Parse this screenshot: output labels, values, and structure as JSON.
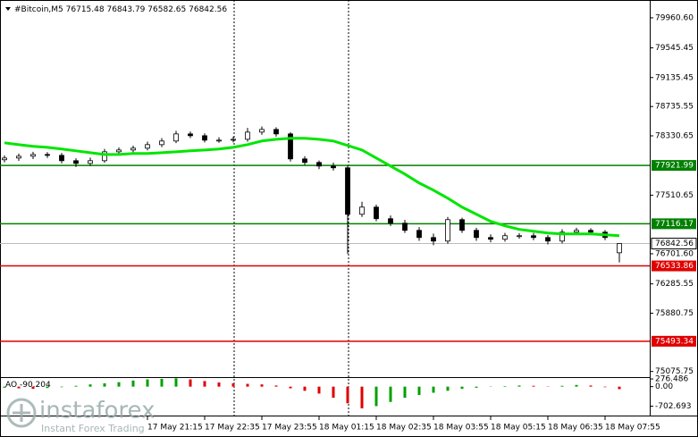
{
  "chart_data": {
    "type": "candlestick",
    "symbol": "#Bitcoin,M5",
    "x": [
      null,
      null,
      null,
      null,
      null,
      null,
      null,
      null,
      null,
      null,
      "17 May 21:15",
      null,
      null,
      null,
      "17 May 22:35",
      null,
      null,
      null,
      "17 May 23:55",
      null,
      null,
      null,
      "18 May 01:15",
      null,
      null,
      null,
      "18 May 02:35",
      null,
      null,
      null,
      "18 May 03:55",
      null,
      null,
      null,
      "18 May 05:15",
      null,
      null,
      null,
      "18 May 06:35",
      null,
      null,
      null,
      "18 May 07:55",
      null
    ],
    "open": [
      78000,
      78024,
      78049,
      78073,
      78061,
      77987,
      77950,
      77987,
      78110,
      78135,
      78160,
      78209,
      78259,
      78357,
      78332,
      78271,
      78271,
      78283,
      78382,
      78419,
      78357,
      78012,
      77963,
      77913,
      77889,
      77247,
      77346,
      77186,
      77124,
      77025,
      76926,
      76877,
      77173,
      77025,
      76926,
      76902,
      76951,
      76951,
      76926,
      76877,
      77000,
      77025,
      77000,
      76715.48
    ],
    "high": [
      78060,
      78085,
      78110,
      78105,
      78095,
      78020,
      78030,
      78150,
      78170,
      78195,
      78250,
      78300,
      78400,
      78390,
      78365,
      78310,
      78320,
      78440,
      78460,
      78450,
      78380,
      78050,
      77990,
      77960,
      77920,
      77420,
      77380,
      77230,
      77170,
      77070,
      76980,
      77210,
      77200,
      77060,
      76970,
      76990,
      76985,
      76990,
      76960,
      77040,
      77060,
      77055,
      77030,
      76843.79
    ],
    "low": [
      77965,
      77985,
      78010,
      78025,
      77950,
      77900,
      77915,
      77960,
      78080,
      78100,
      78130,
      78175,
      78230,
      78300,
      78240,
      78235,
      78240,
      78250,
      78345,
      78320,
      77975,
      77930,
      77870,
      77850,
      76700,
      77210,
      77150,
      77085,
      76990,
      76880,
      76820,
      76840,
      76990,
      76880,
      76860,
      76870,
      76910,
      76890,
      76830,
      76845,
      76960,
      76965,
      76890,
      76582.65
    ],
    "close": [
      78024,
      78049,
      78073,
      78061,
      77987,
      77950,
      77987,
      78110,
      78135,
      78160,
      78209,
      78259,
      78357,
      78332,
      78271,
      78271,
      78283,
      78382,
      78419,
      78357,
      78012,
      77963,
      77913,
      77889,
      77247,
      77346,
      77186,
      77124,
      77025,
      76926,
      76877,
      77173,
      77025,
      76926,
      76902,
      76951,
      76951,
      76926,
      76877,
      77000,
      77025,
      77000,
      76926,
      76842.56
    ],
    "ma": {
      "color": "#00e600",
      "values": [
        78234,
        78209,
        78185,
        78172,
        78148,
        78123,
        78098,
        78073,
        78073,
        78086,
        78086,
        78098,
        78110,
        78123,
        78135,
        78148,
        78172,
        78209,
        78259,
        78283,
        78296,
        78296,
        78283,
        78259,
        78197,
        78135,
        78024,
        77913,
        77802,
        77679,
        77580,
        77469,
        77346,
        77247,
        77149,
        77087,
        77038,
        77013,
        76988,
        76976,
        76976,
        76976,
        76964,
        76951
      ]
    },
    "ylim": [
      75010,
      80145
    ],
    "yticks": [
      {
        "value": 79960.6,
        "label": "79960.60"
      },
      79545.45,
      79135.45,
      78735.55,
      78330.65,
      77510.65,
      {
        "value": 76701.6,
        "label": "76701.60"
      },
      76285.55,
      75880.75,
      75075.75
    ],
    "levels": [
      {
        "value": 77921.99,
        "color": "#008000"
      },
      {
        "value": 77116.17,
        "color": "#008000"
      },
      {
        "value": 76533.86,
        "color": "#e00000"
      },
      {
        "value": 75493.34,
        "color": "#e00000"
      }
    ],
    "ao": {
      "name": "AO",
      "values": [
        -40,
        -60,
        -80,
        -50,
        -20,
        30,
        80,
        120,
        160,
        220,
        260,
        280,
        300,
        260,
        200,
        150,
        120,
        100,
        80,
        40,
        -60,
        -150,
        -250,
        -400,
        -600,
        -780,
        -700,
        -550,
        -400,
        -300,
        -220,
        -150,
        -80,
        -40,
        -10,
        20,
        40,
        30,
        10,
        30,
        60,
        40,
        -20,
        -90.204
      ],
      "ylim": [
        -1040,
        310
      ],
      "yticks": [
        276.486,
        {
          "value": 0,
          "label": "0.00"
        },
        -702.693
      ],
      "up_color": "#00a000",
      "down_color": "#e00000"
    },
    "watermark": {
      "brand": "instaforex",
      "tagline": "Instant Forex Trading"
    }
  }
}
